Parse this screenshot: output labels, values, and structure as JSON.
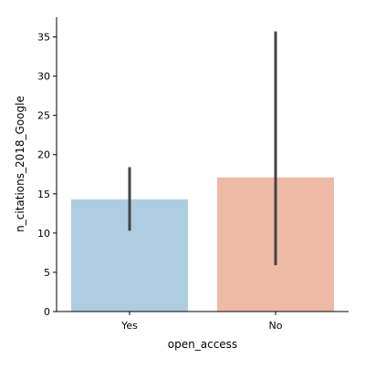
{
  "chart_data": {
    "type": "bar",
    "categories": [
      "Yes",
      "No"
    ],
    "values": [
      14.3,
      17.1
    ],
    "error_bars": [
      {
        "low": 10.3,
        "high": 18.4
      },
      {
        "low": 5.9,
        "high": 35.7
      }
    ],
    "colors": [
      "#aecde1",
      "#eebaa5"
    ],
    "error_bar_color": "#444444",
    "xlabel": "open_access",
    "ylabel": "n_citations_2018_Google",
    "ylim": [
      0,
      37.5
    ],
    "yticks": [
      0,
      5,
      10,
      15,
      20,
      25,
      30,
      35
    ],
    "grid": false,
    "legend": "none"
  }
}
